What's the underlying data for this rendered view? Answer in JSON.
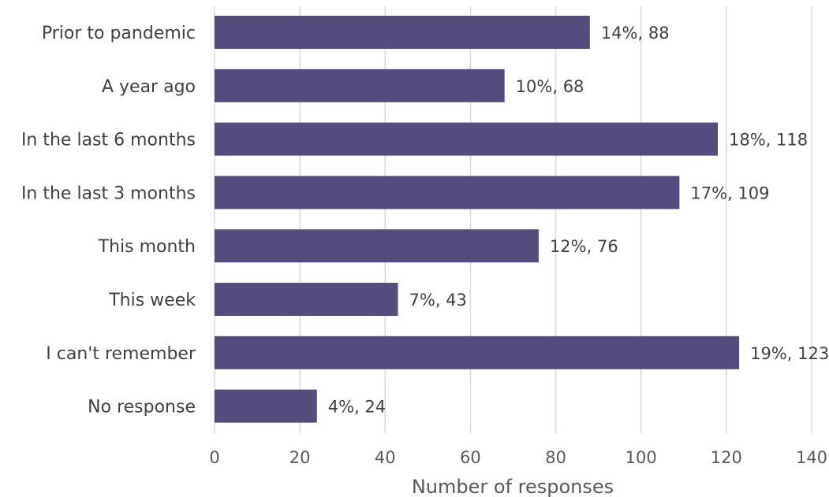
{
  "colors": {
    "bar": "#544c7c",
    "grid": "#d9d9d9",
    "text": "#404040",
    "axis_text": "#595959"
  },
  "chart_data": {
    "type": "bar",
    "orientation": "horizontal",
    "title": "",
    "xlabel": "Number of responses",
    "ylabel": "",
    "xlim": [
      0,
      140
    ],
    "x_ticks": [
      0,
      20,
      40,
      60,
      80,
      100,
      120,
      140
    ],
    "grid": "vertical",
    "legend": "none",
    "categories": [
      "Prior to pandemic",
      "A year ago",
      "In the last 6 months",
      "In the last 3 months",
      "This month",
      "This week",
      "I can't remember",
      "No response"
    ],
    "values": [
      88,
      68,
      118,
      109,
      76,
      43,
      123,
      24
    ],
    "percentages": [
      "14%",
      "10%",
      "18%",
      "17%",
      "12%",
      "7%",
      "19%",
      "4%"
    ],
    "data_labels": [
      "14%, 88",
      "10%, 68",
      "18%, 118",
      "17%, 109",
      "12%, 76",
      "7%, 43",
      "19%, 123",
      "4%, 24"
    ]
  }
}
